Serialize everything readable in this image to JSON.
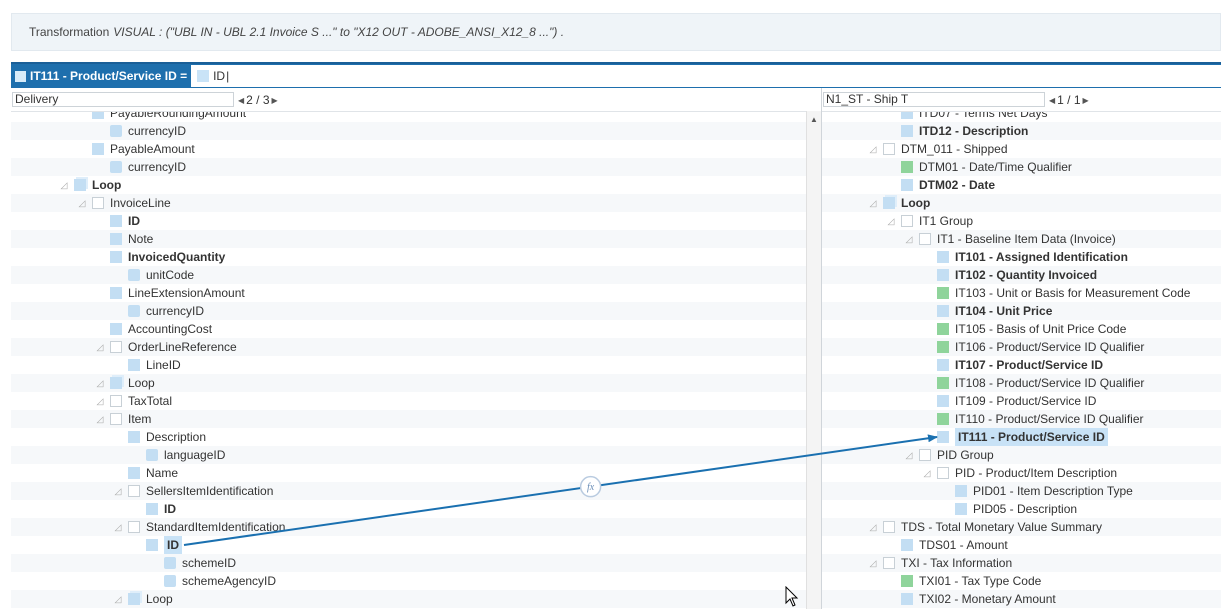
{
  "banner": {
    "label": "Transformation",
    "description": "VISUAL : (\"UBL IN - UBL 2.1 Invoice S ...\" to \"X12 OUT - ADOBE_ANSI_X12_8 ...\") ."
  },
  "mapping": {
    "target_label": "IT111 - Product/Service ID =",
    "expression": "ID"
  },
  "left": {
    "selector": "Delivery",
    "pager": "2 / 3",
    "rows": [
      {
        "depth": 3,
        "icon": "blue",
        "label": "PayableRoundingAmount",
        "bold": false
      },
      {
        "depth": 4,
        "icon": "attr",
        "label": "currencyID",
        "bold": false
      },
      {
        "depth": 3,
        "icon": "blue",
        "label": "PayableAmount",
        "bold": false
      },
      {
        "depth": 4,
        "icon": "attr",
        "label": "currencyID",
        "bold": false
      },
      {
        "depth": 2,
        "icon": "multi",
        "label": "Loop",
        "bold": true
      },
      {
        "depth": 3,
        "icon": "empty",
        "label": "InvoiceLine",
        "bold": false
      },
      {
        "depth": 4,
        "icon": "blue",
        "label": "ID",
        "bold": true
      },
      {
        "depth": 4,
        "icon": "blue",
        "label": "Note",
        "bold": false
      },
      {
        "depth": 4,
        "icon": "blue",
        "label": "InvoicedQuantity",
        "bold": true
      },
      {
        "depth": 5,
        "icon": "attr",
        "label": "unitCode",
        "bold": false
      },
      {
        "depth": 4,
        "icon": "blue",
        "label": "LineExtensionAmount",
        "bold": false
      },
      {
        "depth": 5,
        "icon": "attr",
        "label": "currencyID",
        "bold": false
      },
      {
        "depth": 4,
        "icon": "blue",
        "label": "AccountingCost",
        "bold": false
      },
      {
        "depth": 4,
        "icon": "empty",
        "label": "OrderLineReference",
        "bold": false
      },
      {
        "depth": 5,
        "icon": "blue",
        "label": "LineID",
        "bold": false
      },
      {
        "depth": 4,
        "icon": "multi",
        "label": "Loop",
        "bold": false
      },
      {
        "depth": 4,
        "icon": "empty",
        "label": "TaxTotal",
        "bold": false
      },
      {
        "depth": 4,
        "icon": "empty",
        "label": "Item",
        "bold": false
      },
      {
        "depth": 5,
        "icon": "blue",
        "label": "Description",
        "bold": false
      },
      {
        "depth": 6,
        "icon": "attr",
        "label": "languageID",
        "bold": false
      },
      {
        "depth": 5,
        "icon": "blue",
        "label": "Name",
        "bold": false
      },
      {
        "depth": 5,
        "icon": "empty",
        "label": "SellersItemIdentification",
        "bold": false
      },
      {
        "depth": 6,
        "icon": "blue",
        "label": "ID",
        "bold": true
      },
      {
        "depth": 5,
        "icon": "empty",
        "label": "StandardItemIdentification",
        "bold": false
      },
      {
        "depth": 6,
        "icon": "blue",
        "label": "ID",
        "bold": true,
        "selected": true
      },
      {
        "depth": 7,
        "icon": "attr",
        "label": "schemeID",
        "bold": false
      },
      {
        "depth": 7,
        "icon": "attr",
        "label": "schemeAgencyID",
        "bold": false
      },
      {
        "depth": 5,
        "icon": "multi",
        "label": "Loop",
        "bold": false
      }
    ]
  },
  "right": {
    "selector": "N1_ST - Ship T",
    "pager": "1 / 1",
    "rows": [
      {
        "depth": 3,
        "icon": "blue",
        "label": "ITD07 - Terms Net Days",
        "bold": false
      },
      {
        "depth": 3,
        "icon": "blue",
        "label": "ITD12 - Description",
        "bold": true
      },
      {
        "depth": 2,
        "icon": "empty",
        "label": "DTM_011 - Shipped",
        "bold": false
      },
      {
        "depth": 3,
        "icon": "green",
        "label": "DTM01 - Date/Time Qualifier",
        "bold": false
      },
      {
        "depth": 3,
        "icon": "blue",
        "label": "DTM02 - Date",
        "bold": true
      },
      {
        "depth": 2,
        "icon": "multi",
        "label": "Loop",
        "bold": true
      },
      {
        "depth": 3,
        "icon": "empty",
        "label": "IT1 Group",
        "bold": false
      },
      {
        "depth": 4,
        "icon": "empty",
        "label": "IT1 - Baseline Item Data (Invoice)",
        "bold": false
      },
      {
        "depth": 5,
        "icon": "blue",
        "label": "IT101 - Assigned Identification",
        "bold": true
      },
      {
        "depth": 5,
        "icon": "blue",
        "label": "IT102 - Quantity Invoiced",
        "bold": true
      },
      {
        "depth": 5,
        "icon": "green",
        "label": "IT103 - Unit or Basis for Measurement Code",
        "bold": false
      },
      {
        "depth": 5,
        "icon": "blue",
        "label": "IT104 - Unit Price",
        "bold": true
      },
      {
        "depth": 5,
        "icon": "green",
        "label": "IT105 - Basis of Unit Price Code",
        "bold": false
      },
      {
        "depth": 5,
        "icon": "green",
        "label": "IT106 - Product/Service ID Qualifier",
        "bold": false
      },
      {
        "depth": 5,
        "icon": "blue",
        "label": "IT107 - Product/Service ID",
        "bold": true
      },
      {
        "depth": 5,
        "icon": "green",
        "label": "IT108 - Product/Service ID Qualifier",
        "bold": false
      },
      {
        "depth": 5,
        "icon": "blue",
        "label": "IT109 - Product/Service ID",
        "bold": false
      },
      {
        "depth": 5,
        "icon": "green",
        "label": "IT110 - Product/Service ID Qualifier",
        "bold": false
      },
      {
        "depth": 5,
        "icon": "blue",
        "label": "IT111 - Product/Service ID",
        "bold": true,
        "selected": true
      },
      {
        "depth": 4,
        "icon": "empty",
        "label": "PID Group",
        "bold": false
      },
      {
        "depth": 5,
        "icon": "empty",
        "label": "PID - Product/Item Description",
        "bold": false
      },
      {
        "depth": 6,
        "icon": "blue",
        "label": "PID01 - Item Description Type",
        "bold": false
      },
      {
        "depth": 6,
        "icon": "blue",
        "label": "PID05 - Description",
        "bold": false
      },
      {
        "depth": 2,
        "icon": "empty",
        "label": "TDS - Total Monetary Value Summary",
        "bold": false
      },
      {
        "depth": 3,
        "icon": "blue",
        "label": "TDS01 - Amount",
        "bold": false
      },
      {
        "depth": 2,
        "icon": "empty",
        "label": "TXI - Tax Information",
        "bold": false
      },
      {
        "depth": 3,
        "icon": "green",
        "label": "TXI01 - Tax Type Code",
        "bold": false
      },
      {
        "depth": 3,
        "icon": "blue",
        "label": "TXI02 - Monetary Amount",
        "bold": false
      }
    ]
  },
  "link": {
    "function_icon": "fx-icon",
    "function_label": "fx",
    "from_row": 24,
    "to_row": 18,
    "color": "#1a70b0"
  }
}
